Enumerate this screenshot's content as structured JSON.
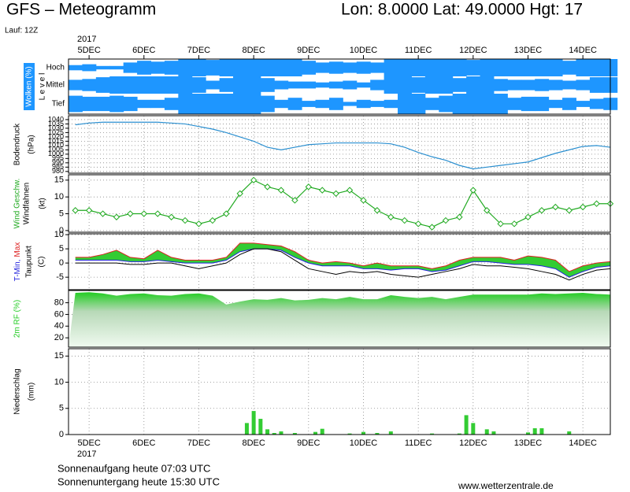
{
  "header": {
    "title": "GFS – Meteogramm",
    "location": "Lon: 8.0000  Lat: 49.0000  Hgt: 17",
    "run": "Lauf: 12Z"
  },
  "time_axis": {
    "year": "2017",
    "xlim": [
      -9,
      228
    ],
    "xticks": [
      {
        "value": 0,
        "label": "5DEC"
      },
      {
        "value": 24,
        "label": "6DEC"
      },
      {
        "value": 48,
        "label": "7DEC"
      },
      {
        "value": 72,
        "label": "8DEC"
      },
      {
        "value": 96,
        "label": "9DEC"
      },
      {
        "value": 120,
        "label": "10DEC"
      },
      {
        "value": 144,
        "label": "11DEC"
      },
      {
        "value": 168,
        "label": "12DEC"
      },
      {
        "value": 192,
        "label": "13DEC"
      },
      {
        "value": 216,
        "label": "14DEC"
      }
    ],
    "x": [
      -6,
      0,
      6,
      12,
      18,
      24,
      30,
      36,
      42,
      48,
      54,
      60,
      66,
      72,
      78,
      84,
      90,
      96,
      102,
      108,
      114,
      120,
      126,
      132,
      138,
      144,
      150,
      156,
      162,
      168,
      174,
      180,
      186,
      192,
      198,
      204,
      210,
      216,
      222,
      228
    ]
  },
  "chart_data": [
    {
      "type": "cloud",
      "label": "Wolken (%)",
      "axis_label": "L e v e l",
      "color": "#1e96ff",
      "ylim": [
        0,
        100
      ],
      "series": [
        {
          "name": "Hoch",
          "values": [
            30,
            40,
            20,
            20,
            60,
            80,
            70,
            80,
            100,
            100,
            90,
            100,
            100,
            100,
            100,
            100,
            100,
            80,
            60,
            70,
            60,
            70,
            60,
            100,
            100,
            100,
            100,
            100,
            100,
            90,
            100,
            100,
            100,
            100,
            100,
            100,
            80,
            100,
            100,
            100
          ]
        },
        {
          "name": "Mittel",
          "values": [
            60,
            70,
            90,
            100,
            100,
            100,
            100,
            100,
            100,
            90,
            50,
            80,
            100,
            100,
            80,
            50,
            40,
            40,
            30,
            40,
            50,
            30,
            60,
            100,
            100,
            90,
            100,
            100,
            80,
            100,
            100,
            70,
            60,
            60,
            70,
            60,
            50,
            60,
            90,
            90
          ]
        },
        {
          "name": "Tief",
          "values": [
            80,
            70,
            70,
            80,
            70,
            40,
            40,
            60,
            100,
            100,
            100,
            100,
            100,
            100,
            80,
            40,
            60,
            30,
            40,
            60,
            20,
            40,
            30,
            40,
            100,
            100,
            60,
            80,
            100,
            100,
            100,
            100,
            60,
            70,
            70,
            40,
            60,
            30,
            50,
            60
          ]
        }
      ]
    },
    {
      "type": "line",
      "axis_label": "Bodendruck",
      "unit": "(hPa)",
      "ylim": [
        978,
        1044.5
      ],
      "grid": true,
      "yticks": [
        1040,
        1035,
        1030,
        1025,
        1020,
        1015,
        1010,
        1005,
        1000,
        995,
        990,
        985,
        980
      ],
      "series": [
        {
          "color": "#2a8fd0",
          "values": [
            1034,
            1036,
            1037,
            1037,
            1037,
            1037,
            1037,
            1036,
            1035,
            1032,
            1029,
            1025,
            1020,
            1015,
            1008,
            1005,
            1008,
            1011,
            1012,
            1013,
            1013,
            1013,
            1013,
            1012,
            1008,
            1002,
            997,
            993,
            987,
            983,
            985,
            987,
            989,
            991,
            996,
            1001,
            1005,
            1009,
            1010,
            1008
          ]
        }
      ]
    },
    {
      "type": "line",
      "markers": true,
      "axis_label": "Windfahnen",
      "unit": "(kt)",
      "ylim": [
        -0.5,
        16.6
      ],
      "grid": true,
      "yticks": [
        0,
        5,
        10,
        15
      ],
      "series": [
        {
          "name": "Wind Geschw.",
          "color": "#22aa22",
          "values": [
            6,
            6,
            5,
            4,
            5,
            5,
            5,
            4,
            3,
            2,
            3,
            5,
            11,
            15,
            13,
            12,
            9,
            13,
            12,
            11,
            12,
            9,
            6,
            4,
            3,
            2,
            1,
            3,
            4,
            12,
            6,
            2,
            2,
            4,
            6,
            7,
            6,
            7,
            8,
            8
          ]
        }
      ]
    },
    {
      "type": "temperature",
      "axis_label": "Taupunkt",
      "unit": "(C)",
      "band_color": "#33cc33",
      "ylim": [
        -9.4,
        10.3
      ],
      "grid": true,
      "yticks": [
        -5,
        0,
        5,
        10
      ],
      "series": [
        {
          "name": "T-Min,",
          "color": "#2222dd",
          "values": [
            1,
            1,
            1,
            1,
            0.5,
            0.5,
            1,
            0.5,
            0,
            0,
            0,
            1,
            4,
            5,
            5,
            4.5,
            2,
            0,
            -1,
            -1,
            -1,
            -2,
            -2,
            -2.5,
            -2,
            -2,
            -3,
            -2.5,
            -1,
            0.5,
            0.5,
            0,
            -0.5,
            -0.5,
            -1,
            -2,
            -5,
            -3,
            -1.5,
            -1
          ]
        },
        {
          "name": "Max",
          "color": "#dd2222",
          "values": [
            2,
            2,
            3,
            4.5,
            2,
            1.5,
            4.5,
            2,
            1,
            1,
            1,
            2,
            7,
            7,
            6.5,
            6,
            4,
            1,
            0,
            0.5,
            0,
            -1,
            0,
            -1,
            -1,
            -1,
            -2,
            -1,
            1,
            2,
            2,
            2,
            1,
            2.5,
            2,
            1,
            -3,
            -1,
            0,
            0.5
          ]
        },
        {
          "color": "#000000",
          "values": [
            0,
            0,
            0,
            0,
            -0.5,
            -0.5,
            0,
            0,
            -1,
            -2,
            -1,
            0,
            3,
            5,
            5,
            4,
            1,
            -2,
            -3,
            -4,
            -3,
            -3.5,
            -3,
            -4,
            -4.5,
            -5,
            -4,
            -3,
            -2,
            -0.5,
            -1,
            -1,
            -1.5,
            -2,
            -3,
            -4,
            -6,
            -4,
            -2.5,
            -2
          ]
        }
      ]
    },
    {
      "type": "area",
      "ylim": [
        4,
        101
      ],
      "grid": true,
      "yticks": [
        20,
        40,
        60,
        80
      ],
      "series": [
        {
          "name": "2m RF (%)",
          "color": "#22cc22",
          "values": [
            97,
            98,
            96,
            92,
            95,
            96,
            93,
            92,
            95,
            96,
            92,
            77,
            82,
            86,
            85,
            88,
            84,
            85,
            88,
            86,
            90,
            86,
            86,
            93,
            90,
            88,
            90,
            86,
            90,
            94,
            94,
            94,
            94,
            94,
            96,
            95,
            96,
            97,
            95,
            94
          ]
        }
      ]
    },
    {
      "type": "bar",
      "axis_label": "Niederschlag",
      "unit": "(mm)",
      "color": "#33cc33",
      "ylim": [
        0,
        16.4
      ],
      "grid": true,
      "yticks": [
        0,
        5,
        10,
        15
      ],
      "x": [
        69,
        72,
        75,
        78,
        81,
        84,
        90,
        99,
        102,
        114,
        120,
        126,
        132,
        150,
        162,
        165,
        168,
        174,
        177,
        192,
        195,
        198,
        210
      ],
      "values": [
        2.2,
        4.5,
        3.0,
        1.0,
        0.3,
        0.6,
        0.3,
        0.5,
        1.1,
        0.2,
        0.5,
        0.3,
        0.6,
        0.2,
        0.2,
        3.7,
        2.2,
        1.0,
        0.6,
        0.4,
        1.2,
        1.2,
        0.6
      ]
    }
  ],
  "footer": {
    "sunrise": "Sonnenaufgang heute 07:03 UTC",
    "sunset": "Sonnenuntergang heute 15:30 UTC",
    "site": "www.wetterzentrale.de"
  }
}
